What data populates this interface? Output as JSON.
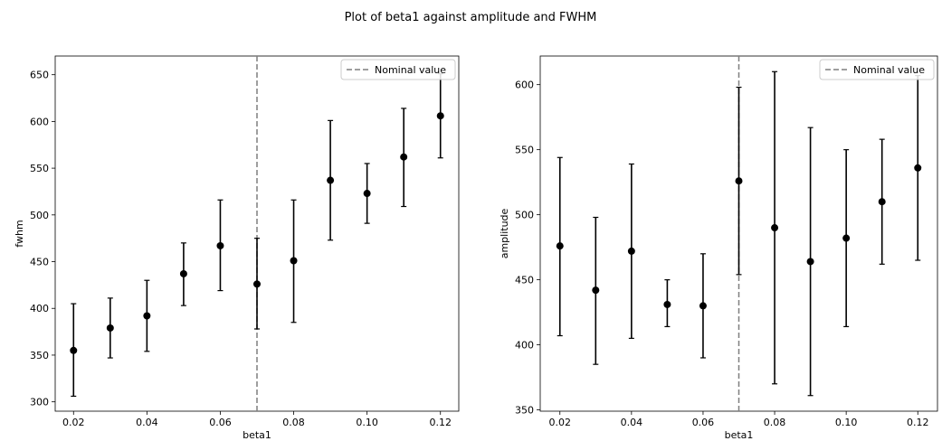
{
  "figure": {
    "suptitle": "Plot of beta1 against amplitude and FWHM"
  },
  "chart_data": [
    {
      "type": "scatter",
      "subtype": "errorbar",
      "xlabel": "beta1",
      "ylabel": "fwhm",
      "xlim": [
        0.015,
        0.125
      ],
      "ylim": [
        290,
        670
      ],
      "xticks": [
        0.02,
        0.04,
        0.06,
        0.08,
        0.1,
        0.12
      ],
      "xtick_labels": [
        "0.02",
        "0.04",
        "0.06",
        "0.08",
        "0.10",
        "0.12"
      ],
      "yticks": [
        300,
        350,
        400,
        450,
        500,
        550,
        600,
        650
      ],
      "ytick_labels": [
        "300",
        "350",
        "400",
        "450",
        "500",
        "550",
        "600",
        "650"
      ],
      "grid": false,
      "marker_color": "#000000",
      "series": [
        {
          "x": [
            0.02,
            0.03,
            0.04,
            0.05,
            0.06,
            0.07,
            0.08,
            0.09,
            0.1,
            0.11,
            0.12
          ],
          "y": [
            355,
            379,
            392,
            437,
            467,
            426,
            451,
            537,
            523,
            562,
            606
          ],
          "yerr_low": [
            306,
            347,
            354,
            403,
            419,
            378,
            385,
            473,
            491,
            509,
            561
          ],
          "yerr_high": [
            405,
            411,
            430,
            470,
            516,
            475,
            516,
            601,
            555,
            614,
            651
          ]
        }
      ],
      "reference_line": {
        "x": 0.07,
        "style": "dashed",
        "color": "#7f7f7f",
        "label": "Nominal value"
      },
      "legend": {
        "placement": "top-right",
        "entries": [
          "Nominal value"
        ]
      }
    },
    {
      "type": "scatter",
      "subtype": "errorbar",
      "xlabel": "beta1",
      "ylabel": "amplitude",
      "xlim": [
        0.0145,
        0.1255
      ],
      "ylim": [
        349,
        622
      ],
      "xticks": [
        0.02,
        0.04,
        0.06,
        0.08,
        0.1,
        0.12
      ],
      "xtick_labels": [
        "0.02",
        "0.04",
        "0.06",
        "0.08",
        "0.10",
        "0.12"
      ],
      "yticks": [
        350,
        400,
        450,
        500,
        550,
        600
      ],
      "ytick_labels": [
        "350",
        "400",
        "450",
        "500",
        "550",
        "600"
      ],
      "grid": false,
      "marker_color": "#000000",
      "series": [
        {
          "x": [
            0.02,
            0.03,
            0.04,
            0.05,
            0.06,
            0.07,
            0.08,
            0.09,
            0.1,
            0.11,
            0.12
          ],
          "y": [
            476,
            442,
            472,
            431,
            430,
            526,
            490,
            464,
            482,
            510,
            536
          ],
          "yerr_low": [
            407,
            385,
            405,
            414,
            390,
            454,
            370,
            361,
            414,
            462,
            465
          ],
          "yerr_high": [
            544,
            498,
            539,
            450,
            470,
            598,
            610,
            567,
            550,
            558,
            607
          ]
        }
      ],
      "reference_line": {
        "x": 0.07,
        "style": "dashed",
        "color": "#7f7f7f",
        "label": "Nominal value"
      },
      "legend": {
        "placement": "top-right",
        "entries": [
          "Nominal value"
        ]
      }
    }
  ]
}
